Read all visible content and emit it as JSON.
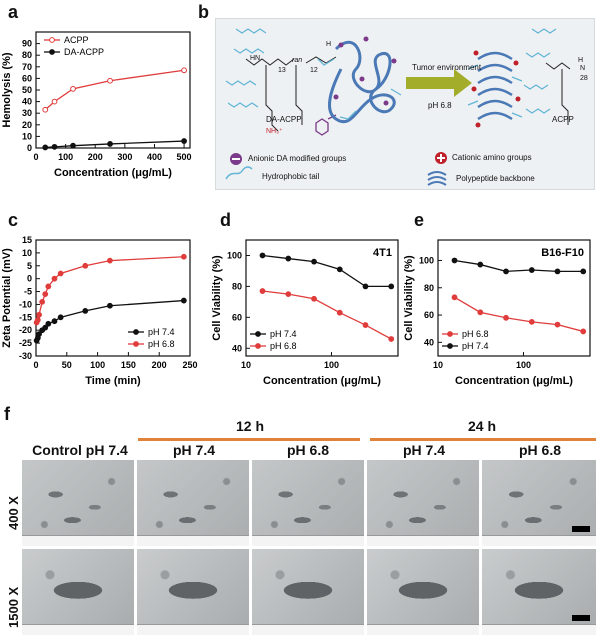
{
  "panels": {
    "a": "a",
    "b": "b",
    "c": "c",
    "d": "d",
    "e": "e",
    "f": "f"
  },
  "scheme": {
    "left_label": "DA-ACPP",
    "right_label": "ACPP",
    "arrow_top": "Tumor environment",
    "arrow_bottom": "pH 6.8",
    "legend_anionic": "Anionic DA modified groups",
    "legend_cationic": "Cationic amino groups",
    "legend_tail": "Hydrophobic tail",
    "legend_backbone": "Polypeptide backbone",
    "chem_left": [
      "HN",
      "13",
      "ran",
      "12",
      "NH₃⁺",
      "H"
    ],
    "chem_right": [
      "H",
      "N",
      "28"
    ],
    "colors": {
      "anionic": "#7b3a8a",
      "cationic": "#c0202a",
      "tail": "#63b6d6",
      "arrow": "#a4ad2a",
      "backbone": "#4a79b6"
    }
  },
  "chart_data": [
    {
      "panel": "a",
      "type": "line",
      "xlabel": "Concentration (μg/mL)",
      "ylabel": "Hemolysis (%)",
      "xlim": [
        0,
        520
      ],
      "ylim": [
        0,
        100
      ],
      "xticks": [
        0,
        100,
        200,
        300,
        400,
        500
      ],
      "yticks": [
        0,
        10,
        20,
        30,
        40,
        50,
        60,
        70,
        80,
        90
      ],
      "legend_position": "top-left",
      "series": [
        {
          "name": "ACPP",
          "color": "#e03c3c",
          "marker": "circle-open",
          "x": [
            31.25,
            62.5,
            125,
            250,
            500
          ],
          "y": [
            33,
            40,
            51,
            58,
            67
          ]
        },
        {
          "name": "DA-ACPP",
          "color": "#111111",
          "marker": "circle-filled",
          "x": [
            31.25,
            62.5,
            125,
            250,
            500
          ],
          "y": [
            0.5,
            1,
            2,
            3.5,
            6
          ]
        }
      ]
    },
    {
      "panel": "c",
      "type": "line",
      "xlabel": "Time (min)",
      "ylabel": "Zeta Potential (mV)",
      "xlim": [
        0,
        250
      ],
      "ylim": [
        -30,
        15
      ],
      "xticks": [
        0,
        50,
        100,
        150,
        200,
        250
      ],
      "yticks": [
        -30,
        -25,
        -20,
        -15,
        -10,
        -5,
        0,
        5,
        10,
        15
      ],
      "legend_position": "bottom-right",
      "series": [
        {
          "name": "pH 7.4",
          "color": "#111111",
          "x": [
            1,
            3,
            5,
            10,
            15,
            20,
            30,
            40,
            80,
            120,
            240
          ],
          "y": [
            -24,
            -23,
            -21.5,
            -20,
            -19,
            -17.5,
            -16.5,
            -15,
            -12.5,
            -10.5,
            -8.5
          ]
        },
        {
          "name": "pH 6.8",
          "color": "#e03c3c",
          "x": [
            1,
            3,
            5,
            10,
            15,
            20,
            30,
            40,
            80,
            120,
            240
          ],
          "y": [
            -17,
            -16,
            -14,
            -9,
            -6,
            -3,
            0,
            2,
            5,
            7,
            8.5
          ]
        }
      ]
    },
    {
      "panel": "d",
      "type": "line",
      "annotation": "4T1",
      "xlabel": "Concentration (μg/mL)",
      "ylabel": "Cell Viability (%)",
      "xscale": "log",
      "xlim": [
        10,
        600
      ],
      "ylim": [
        35,
        110
      ],
      "xticks": [
        10,
        100
      ],
      "yticks": [
        40,
        60,
        80,
        100
      ],
      "legend_position": "bottom-left",
      "series": [
        {
          "name": "pH 7.4",
          "color": "#111111",
          "x": [
            15.6,
            31.25,
            62.5,
            125,
            250,
            500
          ],
          "y": [
            100,
            98,
            96,
            91,
            80,
            80
          ]
        },
        {
          "name": "pH 6.8",
          "color": "#e03c3c",
          "x": [
            15.6,
            31.25,
            62.5,
            125,
            250,
            500
          ],
          "y": [
            77,
            75,
            72,
            63,
            55,
            46
          ]
        }
      ]
    },
    {
      "panel": "e",
      "type": "line",
      "annotation": "B16-F10",
      "xlabel": "Concentration (μg/mL)",
      "ylabel": "Cell Viability (%)",
      "xscale": "log",
      "xlim": [
        10,
        600
      ],
      "ylim": [
        30,
        115
      ],
      "xticks": [
        10,
        100
      ],
      "yticks": [
        40,
        60,
        80,
        100
      ],
      "legend_position": "bottom-left",
      "series": [
        {
          "name": "pH 6.8",
          "color": "#e03c3c",
          "x": [
            15.6,
            31.25,
            62.5,
            125,
            250,
            500
          ],
          "y": [
            73,
            62,
            58,
            55,
            53,
            48
          ]
        },
        {
          "name": "pH 7.4",
          "color": "#111111",
          "x": [
            15.6,
            31.25,
            62.5,
            125,
            250,
            500
          ],
          "y": [
            100,
            97,
            92,
            93,
            92,
            92
          ]
        }
      ]
    }
  ],
  "sem": {
    "time_headers": [
      "12 h",
      "24 h"
    ],
    "column_headers": [
      "Control pH 7.4",
      "pH 7.4",
      "pH 6.8",
      "pH 7.4",
      "pH 6.8"
    ],
    "row_labels": [
      "400 X",
      "1500 X"
    ]
  }
}
